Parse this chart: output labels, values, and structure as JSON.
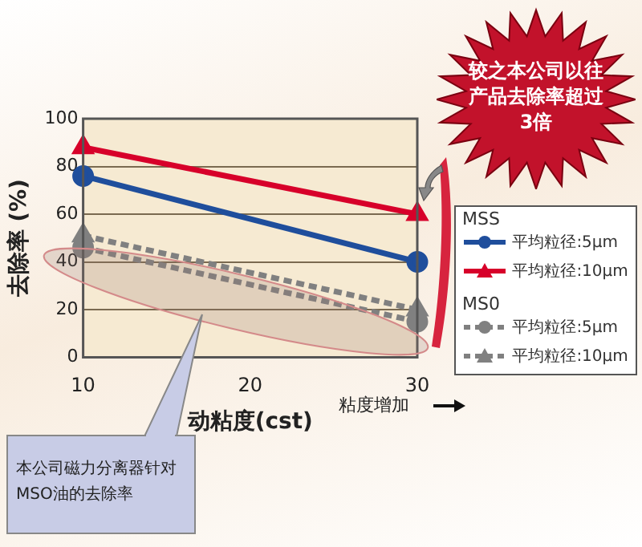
{
  "chart_data": {
    "type": "line",
    "xlabel": "动粘度(cst)",
    "ylabel": "去除率 (%)",
    "x": [
      10,
      30
    ],
    "series": [
      {
        "name": "平均粒径:5μm",
        "color": "#1f4e9c",
        "values": [
          76,
          40
        ],
        "marker": "circle",
        "line_style": "solid"
      },
      {
        "name": "平均粒径:10μm",
        "color": "#d7002a",
        "values": [
          88,
          60
        ],
        "marker": "triangle",
        "line_style": "solid"
      },
      {
        "name": "平均粒径:5μm",
        "color": "#808080",
        "values": [
          46,
          15
        ],
        "marker": "circle",
        "line_style": "dashed"
      },
      {
        "name": "平均粒径:10μm",
        "color": "#808080",
        "values": [
          51,
          20
        ],
        "marker": "triangle",
        "line_style": "dashed"
      }
    ],
    "xlim": [
      10,
      30
    ],
    "xticks": [
      10,
      20,
      30
    ],
    "ylim": [
      0,
      100
    ],
    "yticks": [
      0,
      20,
      40,
      60,
      80,
      100
    ],
    "grid": "y",
    "legend": "right",
    "annotations": [
      "较之本公司以往产品去除率超过3倍",
      "本公司磁力分离器针对MSO油的去除率",
      "粘度增加",
      "MSS",
      "MS0"
    ]
  }
}
